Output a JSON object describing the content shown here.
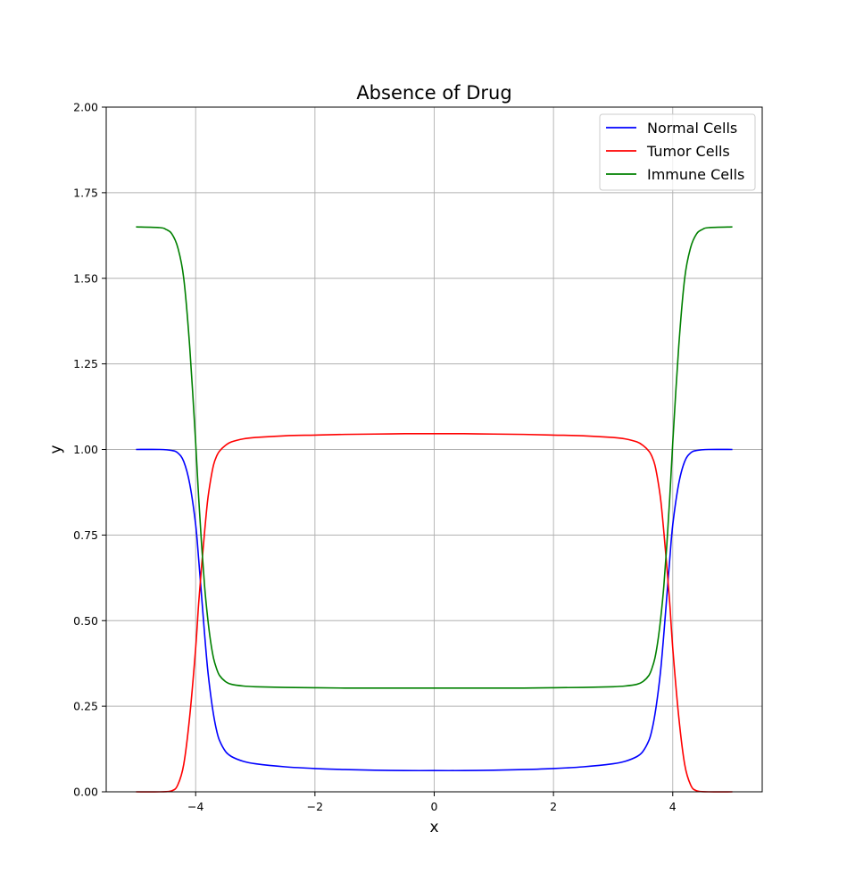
{
  "chart_data": {
    "type": "line",
    "title": "Absence of Drug",
    "xlabel": "x",
    "ylabel": "y",
    "xlim": [
      -5.5,
      5.5
    ],
    "ylim": [
      0,
      2
    ],
    "xticks": [
      -4,
      -2,
      0,
      2,
      4
    ],
    "xtick_labels": [
      "−4",
      "−2",
      "0",
      "2",
      "4"
    ],
    "yticks": [
      0,
      0.25,
      0.5,
      0.75,
      1.0,
      1.25,
      1.5,
      1.75,
      2.0
    ],
    "ytick_labels": [
      "0.00",
      "0.25",
      "0.50",
      "0.75",
      "1.00",
      "1.25",
      "1.50",
      "1.75",
      "2.00"
    ],
    "grid": true,
    "legend_position": "top-right",
    "series": [
      {
        "name": "Normal Cells",
        "color": "#0000ff",
        "x": [
          -5.0,
          -4.6,
          -4.4,
          -4.3,
          -4.2,
          -4.1,
          -4.0,
          -3.95,
          -3.9,
          -3.85,
          -3.8,
          -3.75,
          -3.7,
          -3.65,
          -3.6,
          -3.5,
          -3.4,
          -3.2,
          -3.0,
          -2.5,
          -2.0,
          -1.5,
          -1.0,
          -0.5,
          0.0,
          0.5,
          1.0,
          1.5,
          2.0,
          2.5,
          3.0,
          3.2,
          3.4,
          3.5,
          3.6,
          3.65,
          3.7,
          3.75,
          3.8,
          3.85,
          3.9,
          3.95,
          4.0,
          4.1,
          4.2,
          4.3,
          4.4,
          4.6,
          5.0
        ],
        "y": [
          1.0,
          1.0,
          0.997,
          0.99,
          0.965,
          0.9,
          0.78,
          0.68,
          0.57,
          0.46,
          0.36,
          0.285,
          0.225,
          0.18,
          0.15,
          0.118,
          0.103,
          0.089,
          0.082,
          0.073,
          0.068,
          0.065,
          0.063,
          0.062,
          0.062,
          0.062,
          0.063,
          0.065,
          0.068,
          0.073,
          0.082,
          0.089,
          0.103,
          0.118,
          0.15,
          0.18,
          0.225,
          0.285,
          0.36,
          0.46,
          0.57,
          0.68,
          0.78,
          0.9,
          0.965,
          0.99,
          0.997,
          1.0,
          1.0
        ]
      },
      {
        "name": "Tumor Cells",
        "color": "#ff0000",
        "x": [
          -5.0,
          -4.6,
          -4.4,
          -4.3,
          -4.2,
          -4.1,
          -4.0,
          -3.95,
          -3.9,
          -3.85,
          -3.8,
          -3.75,
          -3.7,
          -3.65,
          -3.6,
          -3.5,
          -3.4,
          -3.2,
          -3.0,
          -2.5,
          -2.0,
          -1.5,
          -1.0,
          -0.5,
          0.0,
          0.5,
          1.0,
          1.5,
          2.0,
          2.5,
          3.0,
          3.2,
          3.4,
          3.5,
          3.6,
          3.65,
          3.7,
          3.75,
          3.8,
          3.85,
          3.9,
          3.95,
          4.0,
          4.1,
          4.2,
          4.3,
          4.4,
          4.6,
          5.0
        ],
        "y": [
          0.0,
          0.0,
          0.003,
          0.02,
          0.08,
          0.22,
          0.42,
          0.55,
          0.66,
          0.76,
          0.85,
          0.91,
          0.955,
          0.98,
          0.995,
          1.012,
          1.022,
          1.031,
          1.035,
          1.04,
          1.042,
          1.044,
          1.045,
          1.046,
          1.046,
          1.046,
          1.045,
          1.044,
          1.042,
          1.04,
          1.035,
          1.031,
          1.022,
          1.012,
          0.995,
          0.98,
          0.955,
          0.91,
          0.85,
          0.76,
          0.66,
          0.55,
          0.42,
          0.22,
          0.08,
          0.02,
          0.003,
          0.0,
          0.0
        ]
      },
      {
        "name": "Immune Cells",
        "color": "#008000",
        "x": [
          -5.0,
          -4.6,
          -4.5,
          -4.4,
          -4.3,
          -4.2,
          -4.1,
          -4.0,
          -3.95,
          -3.9,
          -3.85,
          -3.8,
          -3.75,
          -3.7,
          -3.65,
          -3.6,
          -3.5,
          -3.4,
          -3.2,
          -3.0,
          -2.5,
          -2.0,
          -1.5,
          -1.0,
          -0.5,
          0.0,
          0.5,
          1.0,
          1.5,
          2.0,
          2.5,
          3.0,
          3.2,
          3.4,
          3.5,
          3.6,
          3.65,
          3.7,
          3.75,
          3.8,
          3.85,
          3.9,
          3.95,
          4.0,
          4.1,
          4.2,
          4.3,
          4.4,
          4.5,
          4.6,
          5.0
        ],
        "y": [
          1.65,
          1.648,
          1.643,
          1.63,
          1.59,
          1.5,
          1.3,
          1.02,
          0.86,
          0.72,
          0.6,
          0.51,
          0.44,
          0.39,
          0.36,
          0.34,
          0.322,
          0.314,
          0.309,
          0.307,
          0.305,
          0.304,
          0.303,
          0.303,
          0.303,
          0.303,
          0.303,
          0.303,
          0.303,
          0.304,
          0.305,
          0.307,
          0.309,
          0.314,
          0.322,
          0.34,
          0.36,
          0.39,
          0.44,
          0.51,
          0.6,
          0.72,
          0.86,
          1.02,
          1.3,
          1.5,
          1.59,
          1.63,
          1.643,
          1.648,
          1.65
        ]
      }
    ]
  }
}
